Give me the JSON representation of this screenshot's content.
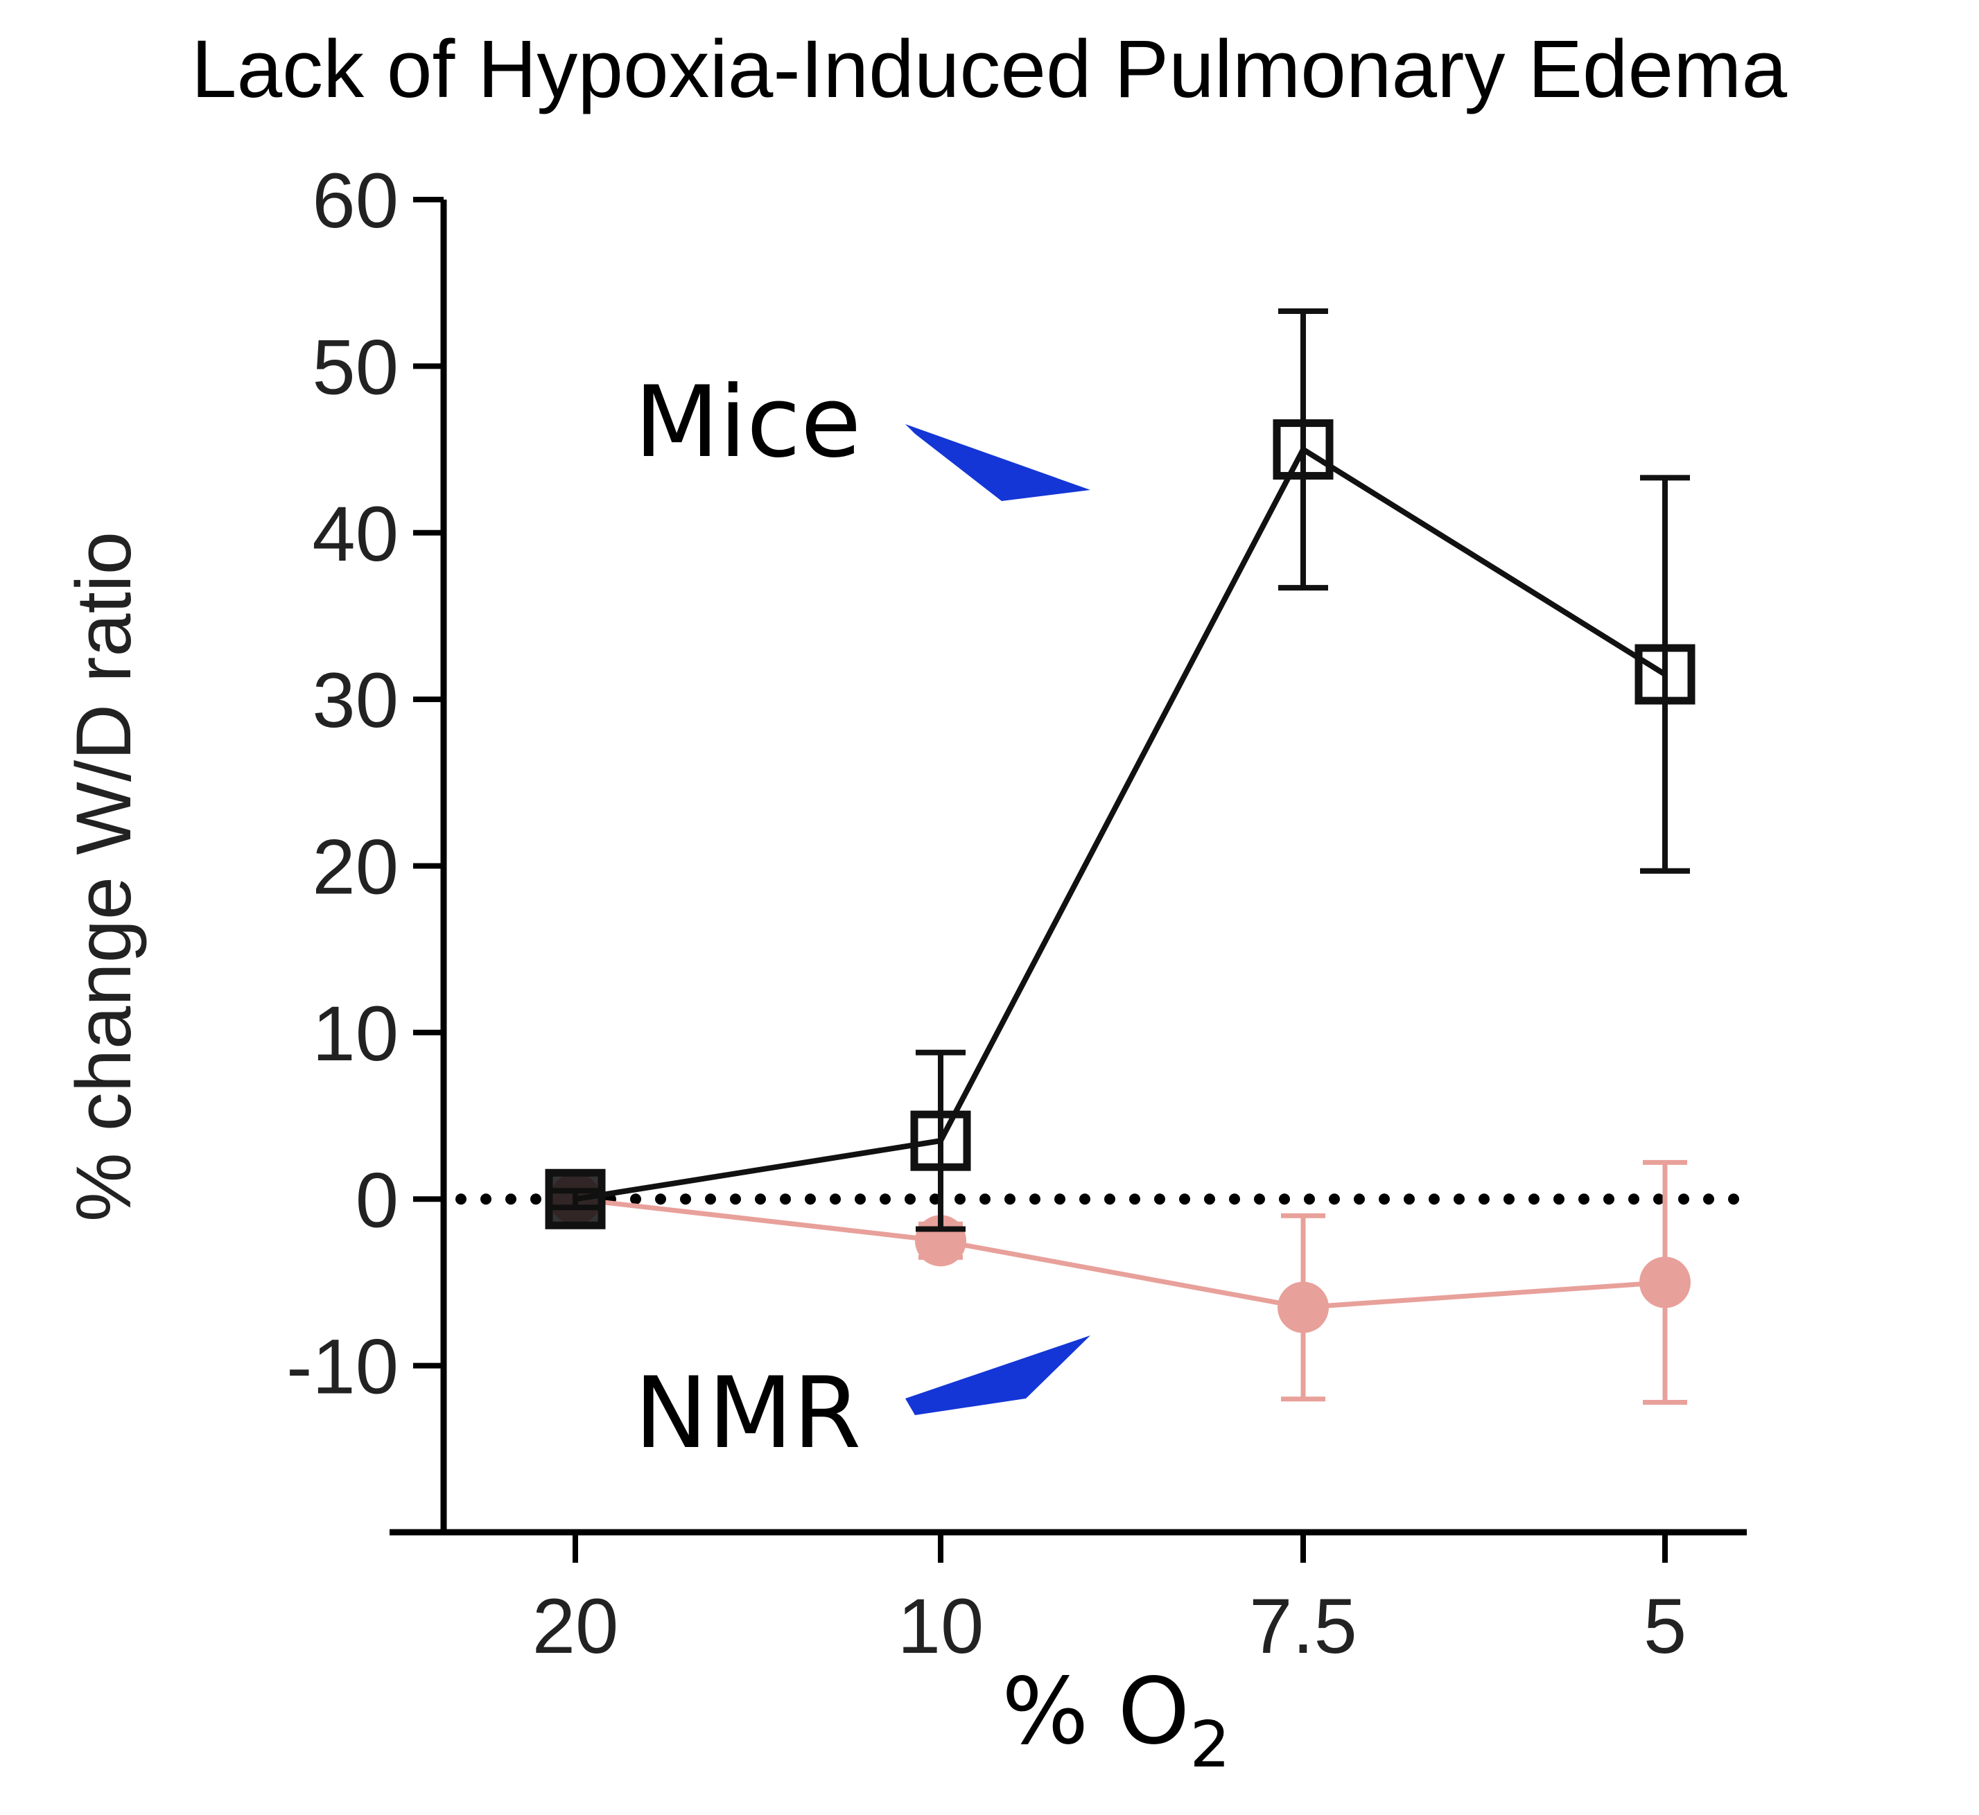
{
  "chart_data": {
    "type": "line",
    "title": "Lack of Hypoxia-Induced Pulmonary Edema",
    "xlabel": "% O",
    "xlabel_subscript": "2",
    "ylabel": "% change W/D ratio",
    "categories": [
      "20",
      "10",
      "7.5",
      "5"
    ],
    "yticks": [
      "-10",
      "0",
      "10",
      "20",
      "30",
      "40",
      "50",
      "60"
    ],
    "ylim": [
      -20,
      60
    ],
    "reference_line": 0,
    "series": [
      {
        "name": "NMR",
        "marker": "filled-circle",
        "color": "#e8a09a",
        "values": [
          0,
          -2.5,
          -6.5,
          -5
        ],
        "error": [
          0,
          1,
          5.5,
          7.2
        ]
      },
      {
        "name": "Mice",
        "marker": "open-square",
        "color": "#111111",
        "values": [
          0,
          3.5,
          45,
          31.5
        ],
        "error": [
          0.5,
          5.3,
          8.3,
          11.8
        ]
      }
    ],
    "annotations": [
      {
        "text": "Mice",
        "arrow_color": "#1436d6"
      },
      {
        "text": "NMR",
        "arrow_color": "#1436d6"
      }
    ]
  }
}
